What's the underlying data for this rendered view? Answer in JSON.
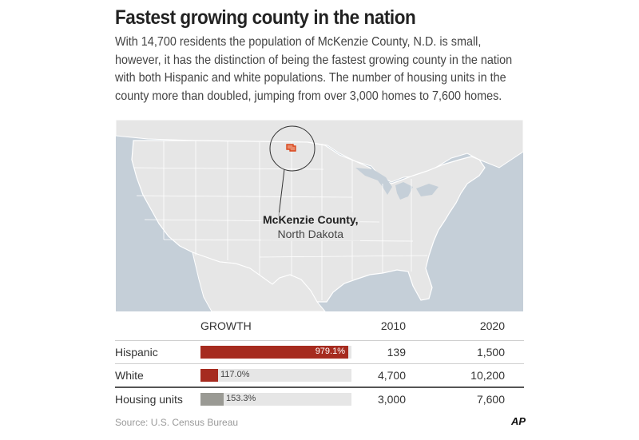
{
  "title": "Fastest growing county in the nation",
  "intro": "With 14,700 residents the population of McKenzie County, N.D. is small, however, it has the distinction of being the fastest growing county in the nation with both Hispanic and white populations. The number of housing units in the county more than doubled, jumping from over 3,000 homes to 7,600 homes.",
  "map": {
    "callout_name": "McKenzie County,",
    "callout_state": "North Dakota",
    "colors": {
      "land": "#e6e6e6",
      "water": "#c5cfd8",
      "highlight": "#d9461c",
      "borders": "#ffffff"
    }
  },
  "table": {
    "headers": {
      "growth": "GROWTH",
      "y2010": "2010",
      "y2020": "2020"
    },
    "rows": [
      {
        "label": "Hispanic",
        "pct_label": "979.1%",
        "pct": 979.1,
        "v2010": "139",
        "v2020": "1,500",
        "color": "#a62b1f"
      },
      {
        "label": "White",
        "pct_label": "117.0%",
        "pct": 117.0,
        "v2010": "4,700",
        "v2020": "10,200",
        "color": "#a62b1f"
      },
      {
        "label": "Housing units",
        "pct_label": "153.3%",
        "pct": 153.3,
        "v2010": "3,000",
        "v2020": "7,600",
        "color": "#9a9a94"
      }
    ]
  },
  "source": "Source: U.S. Census Bureau",
  "credit": "AP"
}
